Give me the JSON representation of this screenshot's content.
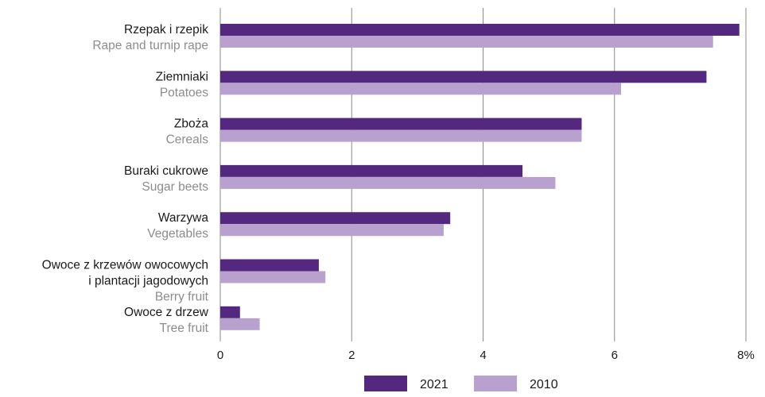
{
  "chart_data": {
    "type": "bar",
    "orientation": "horizontal",
    "categories": [
      {
        "lines": [
          "Rzepak i rzepik"
        ],
        "english": "Rape and turnip rape"
      },
      {
        "lines": [
          "Ziemniaki"
        ],
        "english": "Potatoes"
      },
      {
        "lines": [
          "Zboża"
        ],
        "english": "Cereals"
      },
      {
        "lines": [
          "Buraki cukrowe"
        ],
        "english": "Sugar beets"
      },
      {
        "lines": [
          "Warzywa"
        ],
        "english": "Vegetables"
      },
      {
        "lines": [
          "Owoce z krzewów owocowych",
          "i plantacji jagodowych"
        ],
        "english": "Berry fruit"
      },
      {
        "lines": [
          "Owoce z drzew"
        ],
        "english": "Tree fruit"
      }
    ],
    "series": [
      {
        "name": "2021",
        "color": "#55287f",
        "values": [
          7.9,
          7.4,
          5.5,
          4.6,
          3.5,
          1.5,
          0.3
        ]
      },
      {
        "name": "2010",
        "color": "#b8a1cf",
        "values": [
          7.5,
          6.1,
          5.5,
          5.1,
          3.4,
          1.6,
          0.6
        ]
      }
    ],
    "xlim": [
      0,
      8
    ],
    "ticks": [
      {
        "value": 0,
        "label": "0"
      },
      {
        "value": 2,
        "label": "2"
      },
      {
        "value": 4,
        "label": "4"
      },
      {
        "value": 6,
        "label": "6"
      },
      {
        "value": 8,
        "label": "8%"
      }
    ],
    "grid": true,
    "legend_position": "bottom"
  }
}
